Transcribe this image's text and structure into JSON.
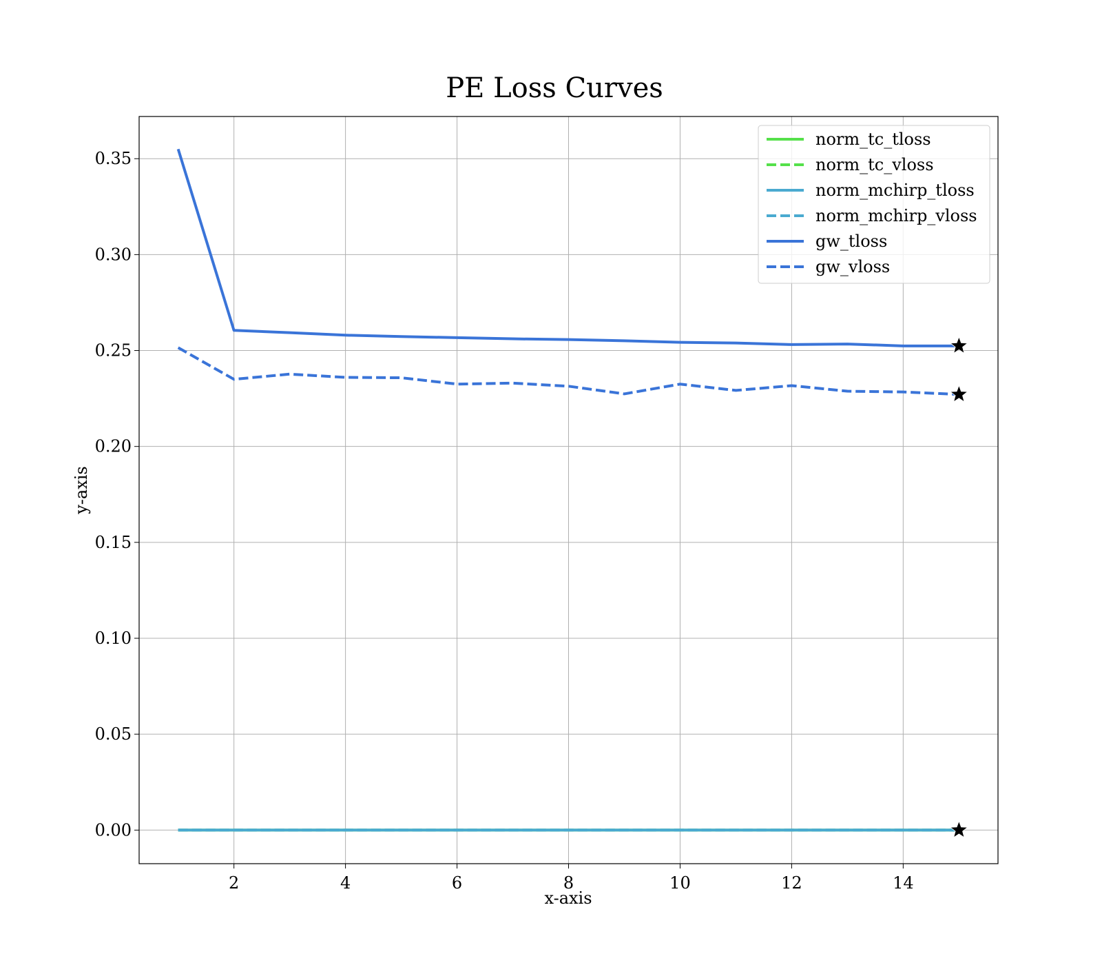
{
  "chart_data": {
    "type": "line",
    "title": "PE Loss Curves",
    "xlabel": "x-axis",
    "ylabel": "y-axis",
    "xlim": [
      0.3,
      15.7
    ],
    "ylim": [
      -0.0175,
      0.372
    ],
    "xticks": [
      2,
      4,
      6,
      8,
      10,
      12,
      14
    ],
    "yticks": [
      0.0,
      0.05,
      0.1,
      0.15,
      0.2,
      0.25,
      0.3,
      0.35
    ],
    "grid": true,
    "legend_position": "top-right",
    "x": [
      1,
      2,
      3,
      4,
      5,
      6,
      7,
      8,
      9,
      10,
      11,
      12,
      13,
      14,
      15
    ],
    "series": [
      {
        "name": "norm_tc_tloss",
        "color": "#55e04a",
        "dash": "solid",
        "values": [
          0,
          0,
          0,
          0,
          0,
          0,
          0,
          0,
          0,
          0,
          0,
          0,
          0,
          0,
          0
        ]
      },
      {
        "name": "norm_tc_vloss",
        "color": "#55e04a",
        "dash": "dashed",
        "values": [
          0,
          0,
          0,
          0,
          0,
          0,
          0,
          0,
          0,
          0,
          0,
          0,
          0,
          0,
          0
        ]
      },
      {
        "name": "norm_mchirp_tloss",
        "color": "#4aaad0",
        "dash": "solid",
        "values": [
          0,
          0,
          0,
          0,
          0,
          0,
          0,
          0,
          0,
          0,
          0,
          0,
          0,
          0,
          0
        ]
      },
      {
        "name": "norm_mchirp_vloss",
        "color": "#4aaad0",
        "dash": "dashed",
        "values": [
          0,
          0,
          0,
          0,
          0,
          0,
          0,
          0,
          0,
          0,
          0,
          0,
          0,
          0,
          0
        ]
      },
      {
        "name": "gw_tloss",
        "color": "#3a74d8",
        "dash": "solid",
        "values": [
          0.355,
          0.2605,
          0.2593,
          0.258,
          0.2573,
          0.2567,
          0.2561,
          0.2557,
          0.2551,
          0.2543,
          0.2539,
          0.2531,
          0.2534,
          0.2524,
          0.2524
        ]
      },
      {
        "name": "gw_vloss",
        "color": "#3a74d8",
        "dash": "dashed",
        "values": [
          0.2515,
          0.235,
          0.2377,
          0.236,
          0.2358,
          0.2325,
          0.233,
          0.2314,
          0.2274,
          0.2325,
          0.2292,
          0.2317,
          0.2288,
          0.2284,
          0.2271
        ]
      }
    ],
    "markers": [
      {
        "shape": "star",
        "color": "#000000",
        "x": 15,
        "y": 0.2524
      },
      {
        "shape": "star",
        "color": "#000000",
        "x": 15,
        "y": 0.2271
      },
      {
        "shape": "star",
        "color": "#000000",
        "x": 15,
        "y": 0.0
      }
    ]
  }
}
